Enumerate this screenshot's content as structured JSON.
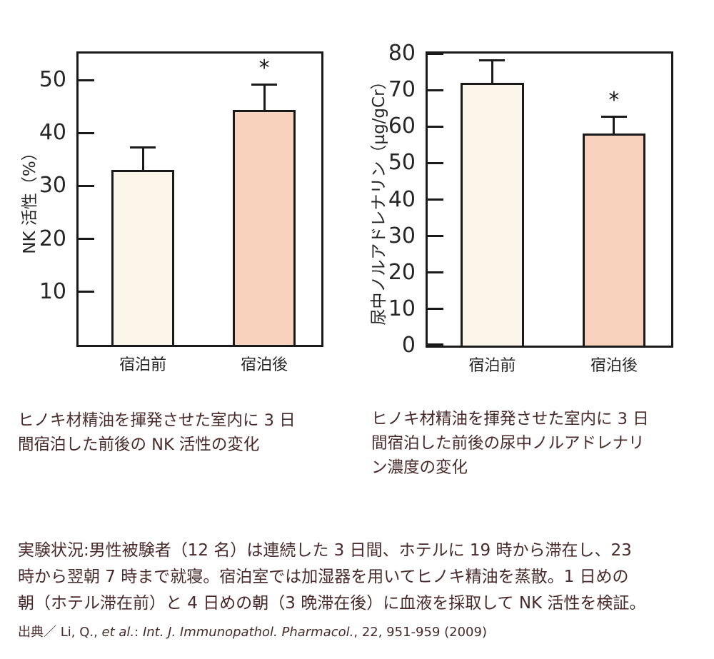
{
  "colors": {
    "background": "#ffffff",
    "axis_and_outline": "#1a1a1a",
    "chart_text": "#262626",
    "body_text": "#492a2b",
    "bar_before_fill": "#fcf5ea",
    "bar_after_fill": "#f8d2bc"
  },
  "chart_data": [
    {
      "type": "bar",
      "title": "",
      "xlabel": "",
      "ylabel": "NK 活性（%）",
      "categories": [
        "宿泊前",
        "宿泊後"
      ],
      "values": [
        33,
        44.3
      ],
      "errors_plus": [
        4.5,
        5
      ],
      "significance": [
        "",
        "*"
      ],
      "ylim": [
        0,
        55
      ],
      "yticks": [
        10,
        20,
        30,
        40,
        50
      ],
      "bar_colors": [
        "#fcf5ea",
        "#f8d2bc"
      ],
      "bar_centers": [
        0.265,
        0.765
      ],
      "bar_width_frac": 0.26,
      "grid": false,
      "legend": false
    },
    {
      "type": "bar",
      "title": "",
      "xlabel": "",
      "ylabel": "尿中ノルアドレナリン（µg/gCr）",
      "categories": [
        "宿泊前",
        "宿泊後"
      ],
      "values": [
        72,
        58
      ],
      "errors_plus": [
        6.5,
        5
      ],
      "significance": [
        "",
        "*"
      ],
      "ylim": [
        0,
        80
      ],
      "yticks": [
        0,
        10,
        20,
        30,
        40,
        50,
        60,
        70,
        80
      ],
      "bar_colors": [
        "#fcf5ea",
        "#f8d2bc"
      ],
      "bar_centers": [
        0.265,
        0.765
      ],
      "bar_width_frac": 0.26,
      "grid": false,
      "legend": false
    }
  ],
  "captions": {
    "left": "ヒノキ材精油を揮発させた室内に 3 日\n間宿泊した前後の NK 活性の変化",
    "right": "ヒノキ材精油を揮発させた室内に 3 日\n間宿泊した前後の尿中ノルアドレナリ\nン濃度の変化"
  },
  "notes": {
    "experiment": "実験状況:男性被験者（12 名）は連続した 3 日間、ホテルに 19 時から滞在し、23\n時から翌朝 7 時まで就寝。宿泊室では加湿器を用いてヒノキ精油を蒸散。1 日めの\n朝（ホテル滞在前）と 4 日めの朝（3 晩滞在後）に血液を採取して NK 活性を検証。"
  },
  "citation": {
    "prefix": "出典／ Li, Q., ",
    "etal": "et al.",
    "colon": ": ",
    "journal": "Int. J. Immunopathol. Pharmacol.",
    "rest": ", 22, 951-959 (2009)"
  }
}
